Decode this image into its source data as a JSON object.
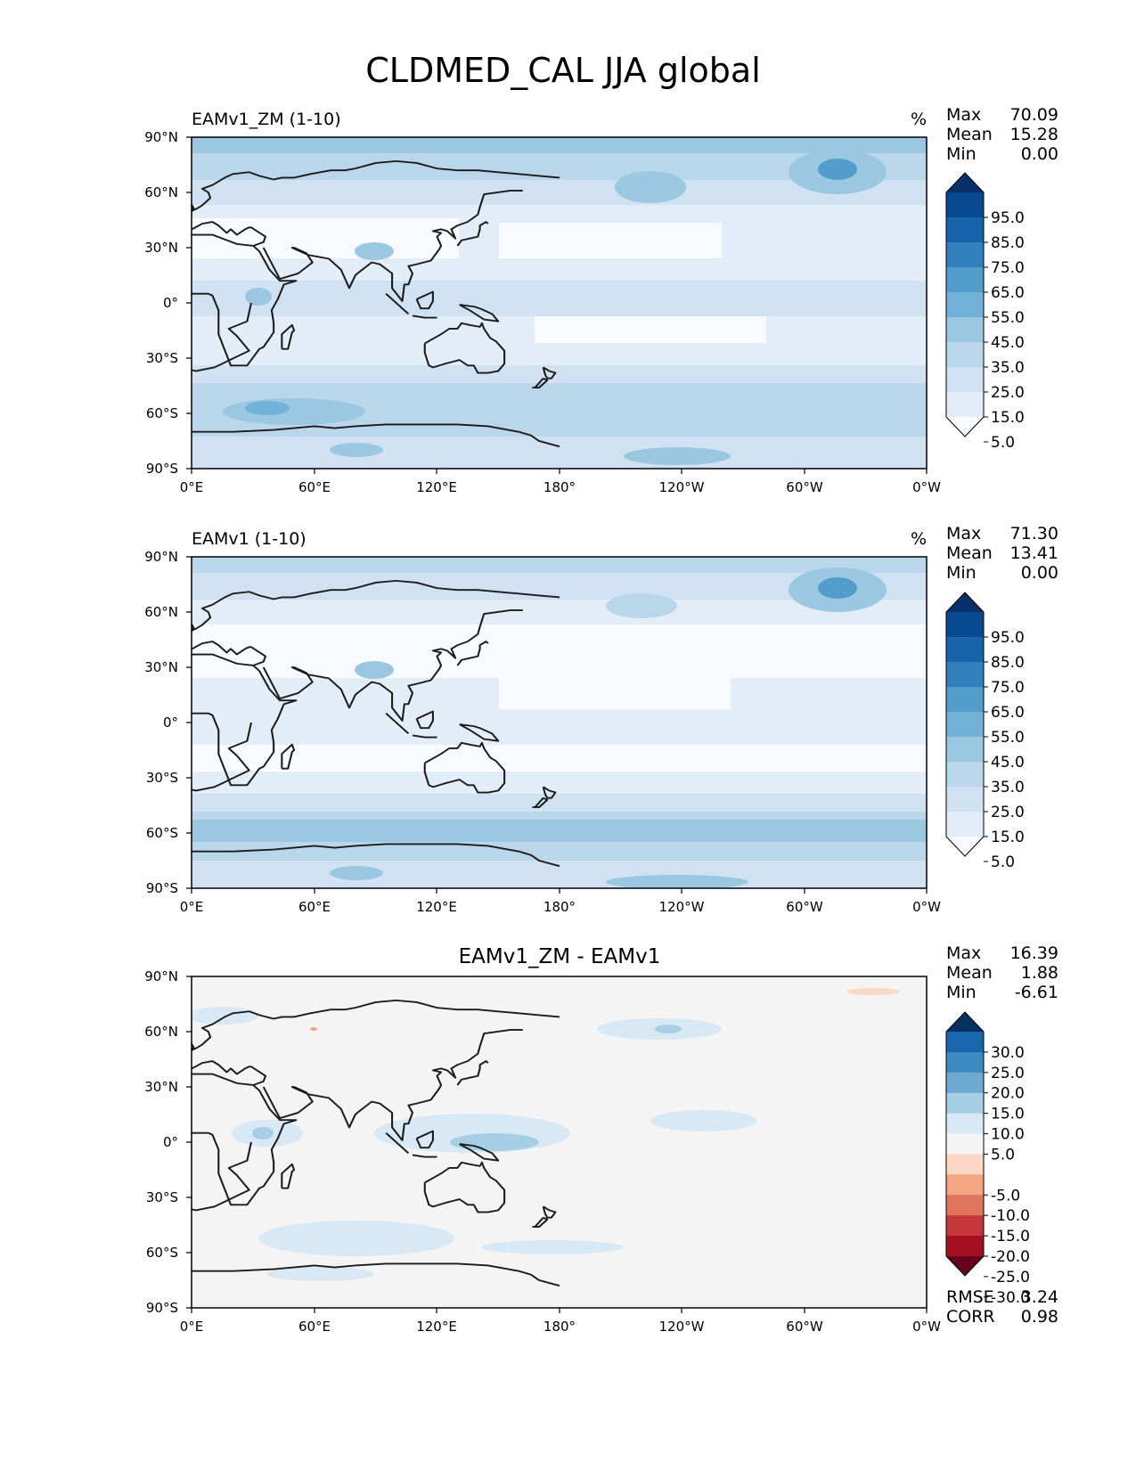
{
  "figure_title": "CLDMED_CAL JJA global",
  "lat_ticks": [
    "90°N",
    "60°N",
    "30°N",
    "0°",
    "30°S",
    "60°S",
    "90°S"
  ],
  "lon_ticks": [
    "0°E",
    "60°E",
    "120°E",
    "180°",
    "120°W",
    "60°W",
    "0°W"
  ],
  "colors": {
    "seq_levels": [
      "#f7fbff",
      "#e2edf8",
      "#d0e1f2",
      "#b9d6ea",
      "#9ac8e0",
      "#73b2d8",
      "#529dcc",
      "#3181bd",
      "#1764ab",
      "#084a91",
      "#08306b"
    ],
    "div_levels": [
      "#67001f",
      "#a50f22",
      "#c6373c",
      "#e0755f",
      "#f4a683",
      "#fbd7c4",
      "#f4f4f4",
      "#d9e8f5",
      "#a6cee4",
      "#6da9d0",
      "#3d8ac2",
      "#1866ac",
      "#053061"
    ],
    "coastline": "#1a1a1a",
    "diff_background": "#f4f4f4"
  },
  "panels": [
    {
      "title_left": "EAMv1_ZM (1-10)",
      "units": "%",
      "stats": [
        {
          "label": "Max",
          "value": "70.09"
        },
        {
          "label": "Mean",
          "value": "15.28"
        },
        {
          "label": "Min",
          "value": "0.00"
        }
      ],
      "colorbar_labels": [
        "95.0",
        "85.0",
        "75.0",
        "65.0",
        "55.0",
        "45.0",
        "35.0",
        "25.0",
        "15.0",
        "5.0"
      ]
    },
    {
      "title_left": "EAMv1 (1-10)",
      "units": "%",
      "stats": [
        {
          "label": "Max",
          "value": "71.30"
        },
        {
          "label": "Mean",
          "value": "13.41"
        },
        {
          "label": "Min",
          "value": "0.00"
        }
      ],
      "colorbar_labels": [
        "95.0",
        "85.0",
        "75.0",
        "65.0",
        "55.0",
        "45.0",
        "35.0",
        "25.0",
        "15.0",
        "5.0"
      ]
    },
    {
      "title_center": "EAMv1_ZM - EAMv1",
      "stats": [
        {
          "label": "Max",
          "value": "16.39"
        },
        {
          "label": "Mean",
          "value": "1.88"
        },
        {
          "label": "Min",
          "value": "-6.61"
        }
      ],
      "colorbar_labels": [
        "30.0",
        "25.0",
        "20.0",
        "15.0",
        "10.0",
        "5.0",
        "-5.0",
        "-10.0",
        "-15.0",
        "-20.0",
        "-25.0",
        "-30.0"
      ],
      "metrics": [
        {
          "label": "RMSE",
          "value": "3.24"
        },
        {
          "label": "CORR",
          "value": "0.98"
        }
      ]
    }
  ]
}
